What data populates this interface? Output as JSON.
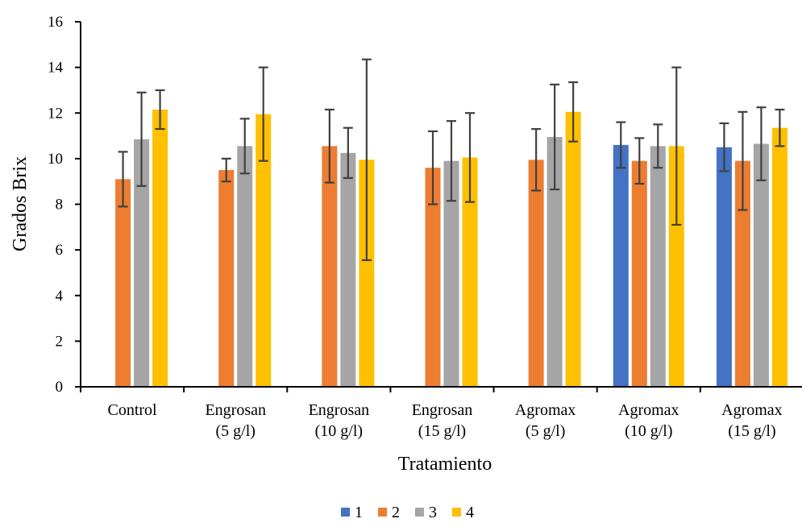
{
  "chart_data": {
    "type": "bar",
    "title": "",
    "xlabel": "Tratamiento",
    "ylabel": "Grados Brix",
    "ylim": [
      0,
      16
    ],
    "yticks": [
      0,
      2,
      4,
      6,
      8,
      10,
      12,
      14,
      16
    ],
    "grid": false,
    "legend_position": "bottom",
    "categories": [
      [
        "Control"
      ],
      [
        "Engrosan",
        "(5 g/l)"
      ],
      [
        "Engrosan",
        "(10 g/l)"
      ],
      [
        "Engrosan",
        "(15 g/l)"
      ],
      [
        "Agromax",
        "(5 g/l)"
      ],
      [
        "Agromax",
        "(10 g/l)"
      ],
      [
        "Agromax",
        "(15 g/l)"
      ]
    ],
    "series": [
      {
        "name": "1",
        "color": "#4472C4",
        "values": [
          null,
          null,
          null,
          null,
          null,
          10.6,
          10.5
        ],
        "errors": [
          null,
          null,
          null,
          null,
          null,
          1.0,
          1.05
        ]
      },
      {
        "name": "2",
        "color": "#ED7D31",
        "values": [
          9.1,
          9.5,
          10.55,
          9.6,
          9.95,
          9.9,
          9.9
        ],
        "errors": [
          1.2,
          0.5,
          1.6,
          1.6,
          1.35,
          1.0,
          2.15
        ]
      },
      {
        "name": "3",
        "color": "#A5A5A5",
        "values": [
          10.85,
          10.55,
          10.25,
          9.9,
          10.95,
          10.55,
          10.65
        ],
        "errors": [
          2.05,
          1.2,
          1.1,
          1.75,
          2.3,
          0.95,
          1.6
        ]
      },
      {
        "name": "4",
        "color": "#FFC000",
        "values": [
          12.15,
          11.95,
          9.95,
          10.05,
          12.05,
          10.55,
          11.35
        ],
        "errors": [
          0.85,
          2.05,
          4.4,
          1.95,
          1.3,
          3.45,
          0.8
        ]
      }
    ]
  }
}
